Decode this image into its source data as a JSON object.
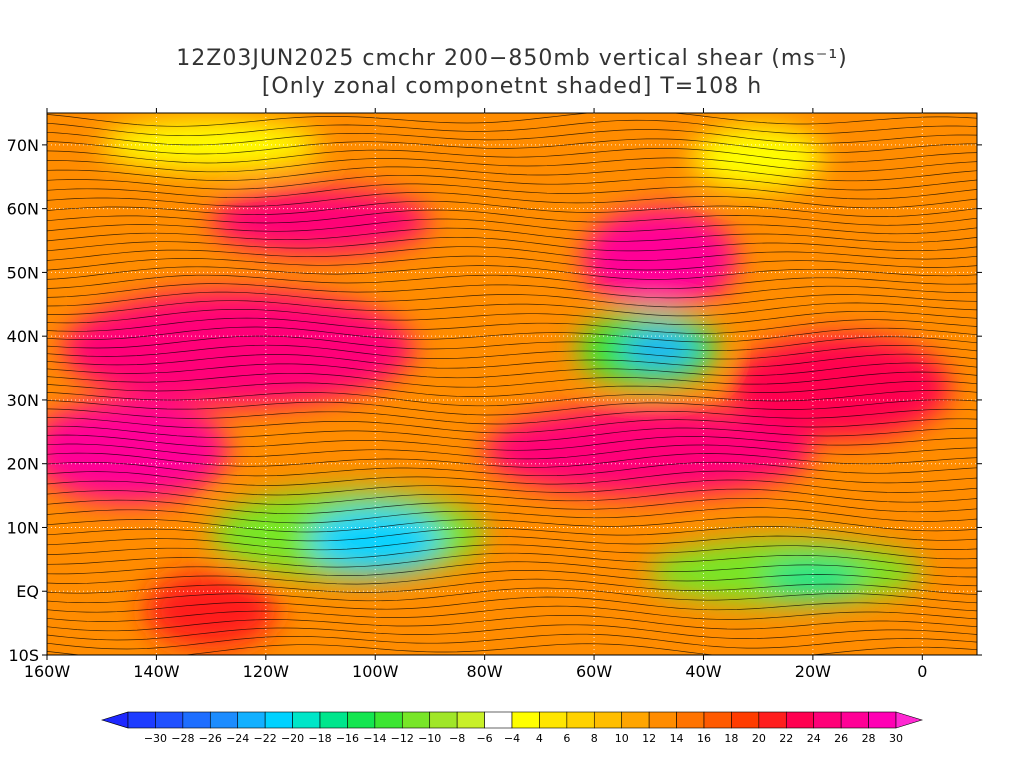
{
  "title_line1": "12Z03JUN2025 cmchr 200−850mb vertical shear (ms⁻¹)",
  "title_line2": "[Only zonal componetnt shaded] T=108 h",
  "map": {
    "lon_range": [
      -160,
      10
    ],
    "lat_range": [
      -10,
      75
    ],
    "lat_ticks": [
      {
        "value": 70,
        "label": "70N"
      },
      {
        "value": 60,
        "label": "60N"
      },
      {
        "value": 50,
        "label": "50N"
      },
      {
        "value": 40,
        "label": "40N"
      },
      {
        "value": 30,
        "label": "30N"
      },
      {
        "value": 20,
        "label": "20N"
      },
      {
        "value": 10,
        "label": "10N"
      },
      {
        "value": 0,
        "label": "EQ"
      },
      {
        "value": -10,
        "label": "10S"
      }
    ],
    "lon_ticks": [
      {
        "value": -160,
        "label": "160W"
      },
      {
        "value": -140,
        "label": "140W"
      },
      {
        "value": -120,
        "label": "120W"
      },
      {
        "value": -100,
        "label": "100W"
      },
      {
        "value": -80,
        "label": "80W"
      },
      {
        "value": -60,
        "label": "60W"
      },
      {
        "value": -40,
        "label": "40W"
      },
      {
        "value": -20,
        "label": "20W"
      },
      {
        "value": 0,
        "label": "0"
      }
    ],
    "shear_regions": [
      {
        "name": "north-pacific-jet",
        "lon": -125,
        "lat": 38,
        "rlon": 32,
        "rlat": 9,
        "value": 26
      },
      {
        "name": "subtropical-pacific",
        "lon": -145,
        "lat": 22,
        "rlon": 18,
        "rlat": 8,
        "value": 28
      },
      {
        "name": "canada-jet",
        "lon": -110,
        "lat": 58,
        "rlon": 20,
        "rlat": 5,
        "value": 26
      },
      {
        "name": "atlantic-jet",
        "lon": -48,
        "lat": 52,
        "rlon": 14,
        "rlat": 8,
        "value": 28
      },
      {
        "name": "atlantic-subtropical-jet",
        "lon": -50,
        "lat": 22,
        "rlon": 30,
        "rlat": 7,
        "value": 26
      },
      {
        "name": "east-atlantic-jet",
        "lon": -15,
        "lat": 32,
        "rlon": 20,
        "rlat": 8,
        "value": 24
      },
      {
        "name": "southeast-pacific",
        "lon": -130,
        "lat": -3,
        "rlon": 12,
        "rlat": 6,
        "value": 22
      },
      {
        "name": "central-atlantic-low",
        "lon": -50,
        "lat": 38,
        "rlon": 13,
        "rlat": 6,
        "value": -12
      },
      {
        "name": "central-atlantic-core",
        "lon": -48,
        "lat": 38,
        "rlon": 7,
        "rlat": 3,
        "value": -22
      },
      {
        "name": "east-pacific-easterlies",
        "lon": -105,
        "lat": 9,
        "rlon": 25,
        "rlat": 7,
        "value": -10
      },
      {
        "name": "east-pacific-core",
        "lon": -100,
        "lat": 8,
        "rlon": 12,
        "rlat": 5,
        "value": -20
      },
      {
        "name": "tropical-atlantic-easterlies",
        "lon": -25,
        "lat": 3,
        "rlon": 25,
        "rlat": 5,
        "value": -10
      },
      {
        "name": "tropical-atlantic-core",
        "lon": -20,
        "lat": 2,
        "rlon": 9,
        "rlat": 3,
        "value": -16
      },
      {
        "name": "arctic-light",
        "lon": -130,
        "lat": 70,
        "rlon": 20,
        "rlat": 4,
        "value": 4
      },
      {
        "name": "greenland-light",
        "lon": -30,
        "lat": 68,
        "rlon": 12,
        "rlat": 5,
        "value": 4
      }
    ]
  },
  "colorbar": {
    "min": -30,
    "max": 30,
    "step": 2,
    "labels": [
      "−30",
      "−28",
      "−26",
      "−24",
      "−22",
      "−20",
      "−18",
      "−16",
      "−14",
      "−12",
      "−10",
      "−8",
      "−6",
      "−4",
      "4",
      "6",
      "8",
      "10",
      "12",
      "14",
      "16",
      "18",
      "20",
      "22",
      "24",
      "26",
      "28",
      "30"
    ],
    "colors": [
      "#1e3cff",
      "#2050ff",
      "#1e6eff",
      "#1c8cff",
      "#12b0ff",
      "#00d2ff",
      "#00e6c8",
      "#00e68c",
      "#14e650",
      "#3ce632",
      "#78e628",
      "#a0e628",
      "#c8f028",
      "#ffffff",
      "#ffff00",
      "#ffe600",
      "#ffd200",
      "#ffbe00",
      "#ffa500",
      "#ff8c00",
      "#ff7300",
      "#ff5a00",
      "#ff3c00",
      "#ff1e1e",
      "#ff0050",
      "#ff0078",
      "#ff0096",
      "#ff00b4"
    ]
  }
}
